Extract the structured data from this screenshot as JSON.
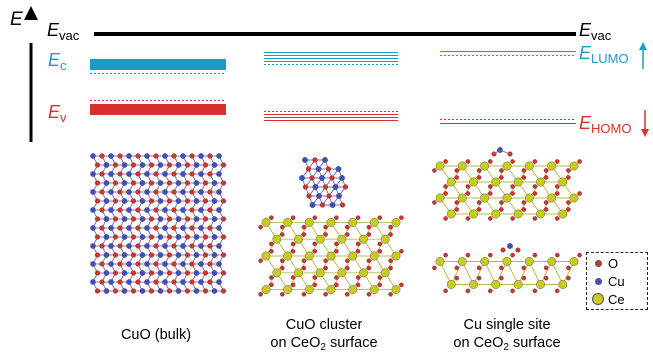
{
  "energy_axis": {
    "symbol": "E",
    "vac_symbol": "E",
    "vac_sub": "vac",
    "vac_right_symbol": "E",
    "vac_right_sub": "vac"
  },
  "left_labels": {
    "ec_symbol": "E",
    "ec_sub": "c",
    "ev_symbol": "E",
    "ev_sub": "v"
  },
  "right_labels": {
    "lumo_symbol": "E",
    "lumo_sub": "LUMO",
    "homo_symbol": "E",
    "homo_sub": "HOMO"
  },
  "captions": {
    "bulk": "CuO (bulk)",
    "cluster_line1": "CuO cluster",
    "cluster_line2_pre": "on CeO",
    "cluster_line2_sub": "2",
    "cluster_line2_post": " surface",
    "single_line1": "Cu single site",
    "single_line2_pre": "on CeO",
    "single_line2_sub": "2",
    "single_line2_post": " surface"
  },
  "legend": [
    {
      "symbol": "O",
      "color": "#d9302c"
    },
    {
      "symbol": "Cu",
      "color": "#3c4ec8"
    },
    {
      "symbol": "Ce",
      "color": "#c9cc1e"
    }
  ],
  "colors": {
    "conduction": "#1b9bcc",
    "valence": "#d9302c",
    "vacuum": "#000000",
    "oxygen": "#d9302c",
    "copper": "#3c4ec8",
    "cerium": "#c9cc1e"
  }
}
